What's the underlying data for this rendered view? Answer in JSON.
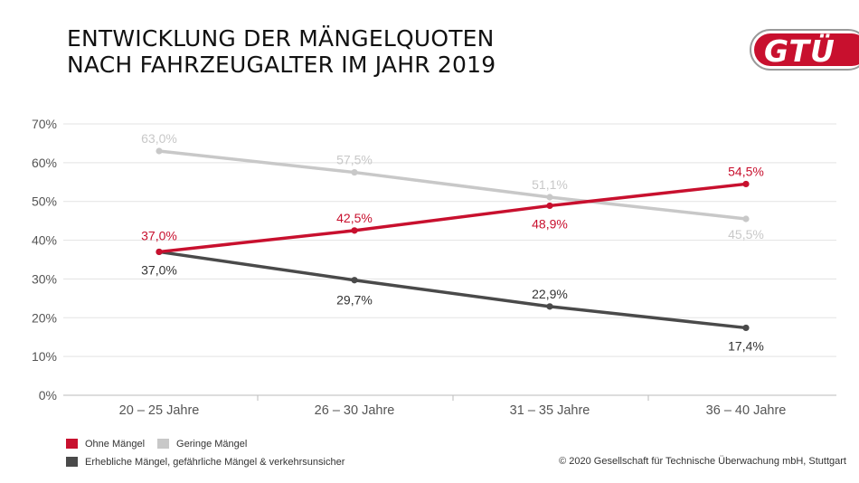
{
  "title_lines": [
    "ENTWICKLUNG DER MÄNGELQUOTEN",
    "NACH FAHRZEUGALTER IM JAHR 2019"
  ],
  "logo_text": "GTÜ",
  "copyright": "© 2020 Gesellschaft für Technische Überwachung mbH, Stuttgart",
  "colors": {
    "red": "#c8102e",
    "light_gray": "#c8c8c8",
    "dark_gray": "#4a4a4a"
  },
  "legend": [
    {
      "label": "Ohne Mängel",
      "color": "#c8102e"
    },
    {
      "label": "Geringe Mängel",
      "color": "#c8c8c8"
    },
    {
      "label": "Erhebliche Mängel, gefährliche Mängel & verkehrsunsicher",
      "color": "#4a4a4a"
    }
  ],
  "chart_data": {
    "type": "line",
    "categories": [
      "20 – 25 Jahre",
      "26 – 30 Jahre",
      "31 – 35 Jahre",
      "36 – 40 Jahre"
    ],
    "ylim": [
      0,
      70
    ],
    "yticks": [
      "0%",
      "10%",
      "20%",
      "30%",
      "40%",
      "50%",
      "60%",
      "70%"
    ],
    "grid": true,
    "legend_position": "bottom-left",
    "series": [
      {
        "name": "Geringe Mängel",
        "color": "#c8c8c8",
        "values": [
          63.0,
          57.5,
          51.1,
          45.5
        ],
        "labels": [
          "63,0%",
          "57,5%",
          "51,1%",
          "45,5%"
        ]
      },
      {
        "name": "Erhebliche Mängel, gefährliche Mängel & verkehrsunsicher",
        "color": "#4a4a4a",
        "values": [
          37.0,
          29.7,
          22.9,
          17.4
        ],
        "labels": [
          "37,0%",
          "29,7%",
          "22,9%",
          "17,4%"
        ]
      },
      {
        "name": "Ohne Mängel",
        "color": "#c8102e",
        "values": [
          37.0,
          42.5,
          48.9,
          54.5
        ],
        "labels": [
          "37,0%",
          "42,5%",
          "48,9%",
          "54,5%"
        ]
      }
    ]
  }
}
